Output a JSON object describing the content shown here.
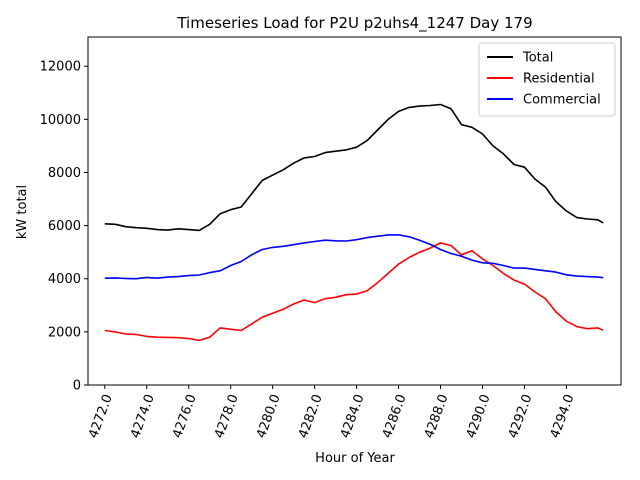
{
  "chart_data": {
    "type": "line",
    "title": "Timeseries Load for P2U p2uhs4_1247  Day 179",
    "xlabel": "Hour of Year",
    "ylabel": "kW total",
    "xlim": [
      4271.2,
      4296.6
    ],
    "ylim": [
      0,
      13100
    ],
    "xticks": [
      4272,
      4274,
      4276,
      4278,
      4280,
      4282,
      4284,
      4286,
      4288,
      4290,
      4292,
      4294
    ],
    "xtick_labels": [
      "4272.0",
      "4274.0",
      "4276.0",
      "4278.0",
      "4280.0",
      "4282.0",
      "4284.0",
      "4286.0",
      "4288.0",
      "4290.0",
      "4292.0",
      "4294.0"
    ],
    "yticks": [
      0,
      2000,
      4000,
      6000,
      8000,
      10000,
      12000
    ],
    "ytick_labels": [
      "0",
      "2000",
      "4000",
      "6000",
      "8000",
      "10000",
      "12000"
    ],
    "legend_position": "upper-right",
    "x": [
      4272.0,
      4272.5,
      4273.0,
      4273.5,
      4274.0,
      4274.5,
      4275.0,
      4275.5,
      4276.0,
      4276.5,
      4277.0,
      4277.5,
      4278.0,
      4278.5,
      4279.0,
      4279.5,
      4280.0,
      4280.5,
      4281.0,
      4281.5,
      4282.0,
      4282.5,
      4283.0,
      4283.5,
      4284.0,
      4284.5,
      4285.0,
      4285.5,
      4286.0,
      4286.5,
      4287.0,
      4287.5,
      4288.0,
      4288.5,
      4289.0,
      4289.5,
      4290.0,
      4290.5,
      4291.0,
      4291.5,
      4292.0,
      4292.5,
      4293.0,
      4293.5,
      4294.0,
      4294.5,
      4295.0,
      4295.5,
      4295.75
    ],
    "series": [
      {
        "name": "Total",
        "color": "#000000",
        "values": [
          6070,
          6050,
          5960,
          5920,
          5900,
          5850,
          5830,
          5880,
          5850,
          5820,
          6050,
          6450,
          6600,
          6700,
          7200,
          7700,
          7900,
          8100,
          8350,
          8550,
          8600,
          8750,
          8800,
          8850,
          8950,
          9200,
          9600,
          10000,
          10300,
          10450,
          10500,
          10520,
          10560,
          10400,
          9800,
          9700,
          9450,
          9000,
          8700,
          8300,
          8200,
          7750,
          7450,
          6900,
          6550,
          6300,
          6250,
          6220,
          6100
        ]
      },
      {
        "name": "Residential",
        "color": "#ff0000",
        "values": [
          2050,
          2000,
          1920,
          1900,
          1830,
          1800,
          1790,
          1780,
          1750,
          1680,
          1800,
          2150,
          2100,
          2050,
          2300,
          2550,
          2700,
          2850,
          3050,
          3200,
          3100,
          3250,
          3300,
          3400,
          3420,
          3550,
          3850,
          4200,
          4550,
          4800,
          5000,
          5150,
          5350,
          5250,
          4900,
          5050,
          4750,
          4500,
          4200,
          3950,
          3800,
          3500,
          3250,
          2750,
          2400,
          2200,
          2120,
          2150,
          2060
        ]
      },
      {
        "name": "Commercial",
        "color": "#0000ff",
        "values": [
          4020,
          4030,
          4010,
          4000,
          4050,
          4020,
          4060,
          4080,
          4120,
          4140,
          4230,
          4300,
          4500,
          4650,
          4900,
          5100,
          5180,
          5220,
          5280,
          5350,
          5400,
          5450,
          5430,
          5420,
          5470,
          5550,
          5600,
          5650,
          5650,
          5580,
          5450,
          5300,
          5100,
          4950,
          4850,
          4700,
          4600,
          4580,
          4500,
          4400,
          4400,
          4350,
          4300,
          4250,
          4150,
          4100,
          4080,
          4060,
          4040
        ]
      }
    ]
  }
}
